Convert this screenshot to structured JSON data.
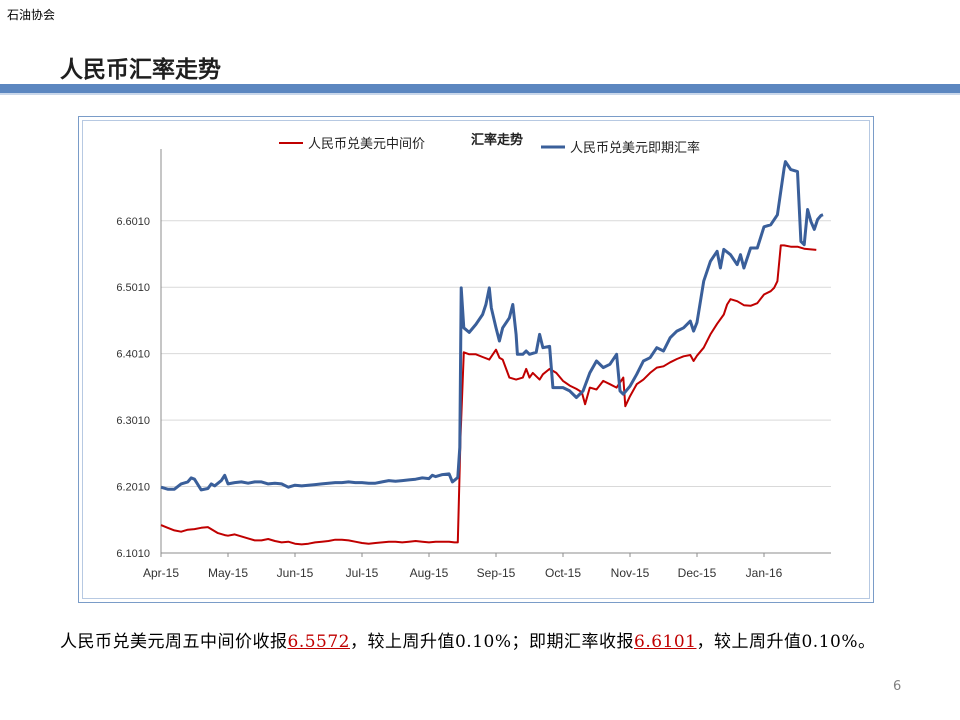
{
  "header": {
    "org_label": "石油协会",
    "slide_title": "人民币汇率走势"
  },
  "colors": {
    "accent_bar": "#5c87c0",
    "series_mid": "#c00000",
    "series_spot": "#3a5f9a",
    "highlight": "#c00000"
  },
  "summary": {
    "p1": "人民币兑美元周五中间价收报",
    "v1": "6.5572",
    "p2": "，较上周升值0.10%；即期汇率收报",
    "v2": "6.6101",
    "p3": "，较上周升值0.10%。"
  },
  "page_number": "6",
  "chart_data": {
    "type": "line",
    "title": "汇率走势",
    "xlabel": "",
    "ylabel": "",
    "ylim": [
      6.101,
      6.7
    ],
    "yticks": [
      "6.1010",
      "6.2010",
      "6.3010",
      "6.4010",
      "6.5010",
      "6.6010"
    ],
    "ytick_values": [
      6.101,
      6.201,
      6.301,
      6.401,
      6.501,
      6.601
    ],
    "xticks": [
      "Apr-15",
      "May-15",
      "Jun-15",
      "Jul-15",
      "Aug-15",
      "Sep-15",
      "Oct-15",
      "Nov-15",
      "Dec-15",
      "Jan-16"
    ],
    "grid": "horizontal",
    "legend_position": "top",
    "series": [
      {
        "name": "人民币兑美元中间价",
        "points": [
          [
            0.0,
            6.143
          ],
          [
            0.1,
            6.139
          ],
          [
            0.2,
            6.135
          ],
          [
            0.3,
            6.133
          ],
          [
            0.4,
            6.136
          ],
          [
            0.5,
            6.137
          ],
          [
            0.6,
            6.139
          ],
          [
            0.7,
            6.14
          ],
          [
            0.85,
            6.131
          ],
          [
            0.95,
            6.128
          ],
          [
            1.0,
            6.127
          ],
          [
            1.1,
            6.129
          ],
          [
            1.2,
            6.126
          ],
          [
            1.3,
            6.123
          ],
          [
            1.4,
            6.12
          ],
          [
            1.5,
            6.12
          ],
          [
            1.6,
            6.122
          ],
          [
            1.7,
            6.119
          ],
          [
            1.8,
            6.117
          ],
          [
            1.9,
            6.118
          ],
          [
            2.0,
            6.115
          ],
          [
            2.1,
            6.114
          ],
          [
            2.2,
            6.115
          ],
          [
            2.3,
            6.117
          ],
          [
            2.4,
            6.118
          ],
          [
            2.5,
            6.119
          ],
          [
            2.6,
            6.121
          ],
          [
            2.7,
            6.121
          ],
          [
            2.8,
            6.12
          ],
          [
            2.9,
            6.118
          ],
          [
            3.0,
            6.116
          ],
          [
            3.1,
            6.115
          ],
          [
            3.2,
            6.116
          ],
          [
            3.3,
            6.117
          ],
          [
            3.4,
            6.118
          ],
          [
            3.5,
            6.118
          ],
          [
            3.6,
            6.117
          ],
          [
            3.7,
            6.118
          ],
          [
            3.8,
            6.119
          ],
          [
            3.9,
            6.118
          ],
          [
            4.0,
            6.117
          ],
          [
            4.1,
            6.118
          ],
          [
            4.2,
            6.118
          ],
          [
            4.3,
            6.118
          ],
          [
            4.38,
            6.117
          ],
          [
            4.43,
            6.117
          ],
          [
            4.47,
            6.275
          ],
          [
            4.52,
            6.403
          ],
          [
            4.6,
            6.4
          ],
          [
            4.7,
            6.4
          ],
          [
            4.8,
            6.396
          ],
          [
            4.9,
            6.392
          ],
          [
            5.0,
            6.407
          ],
          [
            5.05,
            6.395
          ],
          [
            5.1,
            6.392
          ],
          [
            5.2,
            6.365
          ],
          [
            5.3,
            6.362
          ],
          [
            5.4,
            6.365
          ],
          [
            5.45,
            6.378
          ],
          [
            5.5,
            6.365
          ],
          [
            5.55,
            6.372
          ],
          [
            5.65,
            6.362
          ],
          [
            5.7,
            6.37
          ],
          [
            5.8,
            6.378
          ],
          [
            5.9,
            6.372
          ],
          [
            6.0,
            6.36
          ],
          [
            6.1,
            6.353
          ],
          [
            6.2,
            6.348
          ],
          [
            6.28,
            6.343
          ],
          [
            6.33,
            6.325
          ],
          [
            6.4,
            6.35
          ],
          [
            6.5,
            6.347
          ],
          [
            6.6,
            6.36
          ],
          [
            6.7,
            6.355
          ],
          [
            6.8,
            6.35
          ],
          [
            6.9,
            6.365
          ],
          [
            6.93,
            6.322
          ],
          [
            7.0,
            6.337
          ],
          [
            7.1,
            6.355
          ],
          [
            7.2,
            6.362
          ],
          [
            7.3,
            6.372
          ],
          [
            7.4,
            6.38
          ],
          [
            7.5,
            6.382
          ],
          [
            7.6,
            6.388
          ],
          [
            7.7,
            6.393
          ],
          [
            7.8,
            6.397
          ],
          [
            7.9,
            6.399
          ],
          [
            7.95,
            6.39
          ],
          [
            8.0,
            6.398
          ],
          [
            8.1,
            6.41
          ],
          [
            8.2,
            6.43
          ],
          [
            8.3,
            6.446
          ],
          [
            8.4,
            6.46
          ],
          [
            8.45,
            6.475
          ],
          [
            8.5,
            6.483
          ],
          [
            8.6,
            6.48
          ],
          [
            8.7,
            6.474
          ],
          [
            8.8,
            6.473
          ],
          [
            8.9,
            6.477
          ],
          [
            9.0,
            6.49
          ],
          [
            9.1,
            6.495
          ],
          [
            9.15,
            6.5
          ],
          [
            9.2,
            6.51
          ],
          [
            9.25,
            6.564
          ],
          [
            9.3,
            6.564
          ],
          [
            9.4,
            6.562
          ],
          [
            9.5,
            6.562
          ],
          [
            9.6,
            6.559
          ],
          [
            9.7,
            6.558
          ],
          [
            9.78,
            6.5572
          ]
        ]
      },
      {
        "name": "人民币兑美元即期汇率",
        "points": [
          [
            0.0,
            6.2
          ],
          [
            0.1,
            6.197
          ],
          [
            0.2,
            6.197
          ],
          [
            0.3,
            6.205
          ],
          [
            0.4,
            6.208
          ],
          [
            0.45,
            6.214
          ],
          [
            0.5,
            6.212
          ],
          [
            0.6,
            6.196
          ],
          [
            0.7,
            6.198
          ],
          [
            0.75,
            6.205
          ],
          [
            0.8,
            6.202
          ],
          [
            0.9,
            6.21
          ],
          [
            0.95,
            6.218
          ],
          [
            1.0,
            6.205
          ],
          [
            1.1,
            6.207
          ],
          [
            1.2,
            6.208
          ],
          [
            1.3,
            6.206
          ],
          [
            1.4,
            6.208
          ],
          [
            1.5,
            6.208
          ],
          [
            1.6,
            6.205
          ],
          [
            1.7,
            6.206
          ],
          [
            1.8,
            6.205
          ],
          [
            1.9,
            6.2
          ],
          [
            2.0,
            6.203
          ],
          [
            2.1,
            6.202
          ],
          [
            2.2,
            6.203
          ],
          [
            2.3,
            6.204
          ],
          [
            2.4,
            6.205
          ],
          [
            2.5,
            6.206
          ],
          [
            2.6,
            6.207
          ],
          [
            2.7,
            6.207
          ],
          [
            2.8,
            6.208
          ],
          [
            2.9,
            6.207
          ],
          [
            3.0,
            6.207
          ],
          [
            3.1,
            6.206
          ],
          [
            3.2,
            6.206
          ],
          [
            3.3,
            6.208
          ],
          [
            3.4,
            6.21
          ],
          [
            3.5,
            6.209
          ],
          [
            3.6,
            6.21
          ],
          [
            3.7,
            6.211
          ],
          [
            3.8,
            6.212
          ],
          [
            3.9,
            6.214
          ],
          [
            4.0,
            6.213
          ],
          [
            4.05,
            6.218
          ],
          [
            4.1,
            6.216
          ],
          [
            4.2,
            6.219
          ],
          [
            4.3,
            6.22
          ],
          [
            4.35,
            6.208
          ],
          [
            4.4,
            6.212
          ],
          [
            4.43,
            6.215
          ],
          [
            4.46,
            6.26
          ],
          [
            4.48,
            6.5
          ],
          [
            4.52,
            6.44
          ],
          [
            4.6,
            6.433
          ],
          [
            4.7,
            6.445
          ],
          [
            4.8,
            6.46
          ],
          [
            4.85,
            6.475
          ],
          [
            4.9,
            6.5
          ],
          [
            4.93,
            6.47
          ],
          [
            5.0,
            6.44
          ],
          [
            5.05,
            6.42
          ],
          [
            5.1,
            6.44
          ],
          [
            5.2,
            6.455
          ],
          [
            5.25,
            6.475
          ],
          [
            5.3,
            6.43
          ],
          [
            5.32,
            6.4
          ],
          [
            5.4,
            6.4
          ],
          [
            5.45,
            6.405
          ],
          [
            5.5,
            6.4
          ],
          [
            5.6,
            6.403
          ],
          [
            5.65,
            6.43
          ],
          [
            5.7,
            6.41
          ],
          [
            5.8,
            6.412
          ],
          [
            5.85,
            6.35
          ],
          [
            6.0,
            6.35
          ],
          [
            6.1,
            6.345
          ],
          [
            6.2,
            6.335
          ],
          [
            6.3,
            6.345
          ],
          [
            6.4,
            6.372
          ],
          [
            6.5,
            6.39
          ],
          [
            6.6,
            6.38
          ],
          [
            6.7,
            6.385
          ],
          [
            6.8,
            6.4
          ],
          [
            6.85,
            6.345
          ],
          [
            6.9,
            6.34
          ],
          [
            7.0,
            6.352
          ],
          [
            7.1,
            6.37
          ],
          [
            7.2,
            6.39
          ],
          [
            7.3,
            6.395
          ],
          [
            7.4,
            6.41
          ],
          [
            7.5,
            6.405
          ],
          [
            7.6,
            6.425
          ],
          [
            7.7,
            6.435
          ],
          [
            7.8,
            6.44
          ],
          [
            7.9,
            6.45
          ],
          [
            7.95,
            6.435
          ],
          [
            8.0,
            6.448
          ],
          [
            8.1,
            6.51
          ],
          [
            8.2,
            6.54
          ],
          [
            8.3,
            6.555
          ],
          [
            8.35,
            6.53
          ],
          [
            8.4,
            6.558
          ],
          [
            8.5,
            6.55
          ],
          [
            8.6,
            6.535
          ],
          [
            8.65,
            6.55
          ],
          [
            8.7,
            6.53
          ],
          [
            8.8,
            6.56
          ],
          [
            8.9,
            6.56
          ],
          [
            9.0,
            6.592
          ],
          [
            9.1,
            6.595
          ],
          [
            9.2,
            6.61
          ],
          [
            9.3,
            6.68
          ],
          [
            9.32,
            6.69
          ],
          [
            9.4,
            6.678
          ],
          [
            9.5,
            6.675
          ],
          [
            9.55,
            6.57
          ],
          [
            9.6,
            6.565
          ],
          [
            9.65,
            6.618
          ],
          [
            9.7,
            6.6
          ],
          [
            9.75,
            6.588
          ],
          [
            9.8,
            6.603
          ],
          [
            9.85,
            6.609
          ],
          [
            9.88,
            6.6101
          ]
        ]
      }
    ]
  }
}
